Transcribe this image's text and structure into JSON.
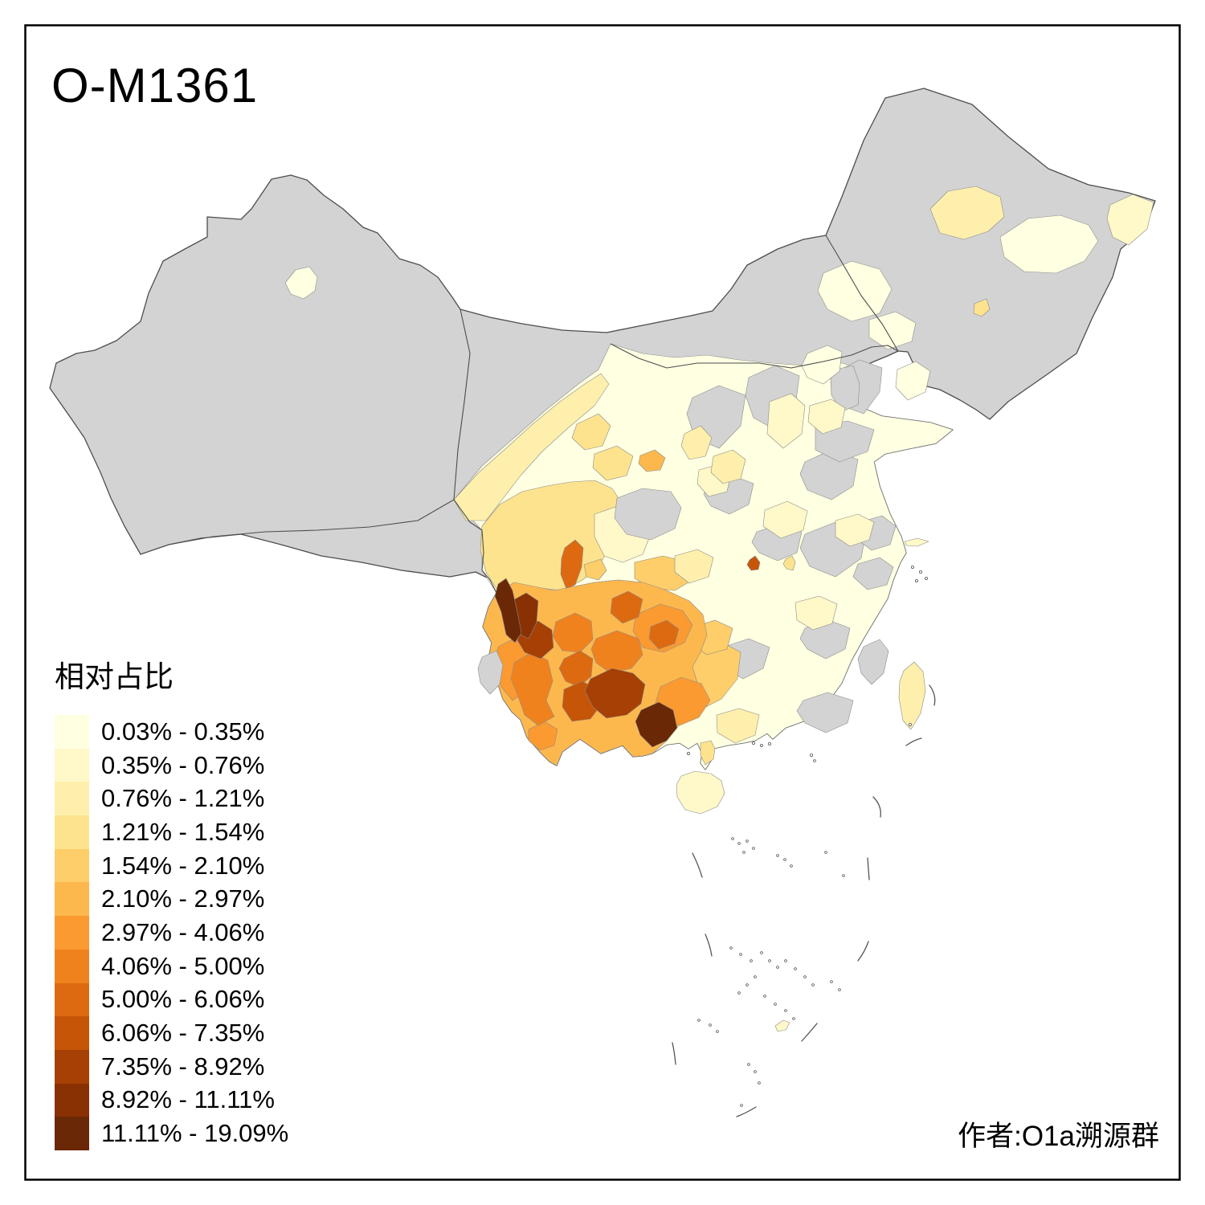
{
  "title": "O-M1361",
  "legend": {
    "title": "相对占比",
    "items": [
      {
        "label": "0.03% - 0.35%",
        "color": "#FFFFE2"
      },
      {
        "label": "0.35% - 0.76%",
        "color": "#FFF8C8"
      },
      {
        "label": "0.76% - 1.21%",
        "color": "#FEEFAC"
      },
      {
        "label": "1.21% - 1.54%",
        "color": "#FDE38E"
      },
      {
        "label": "1.54% - 2.10%",
        "color": "#FDCE69"
      },
      {
        "label": "2.10% - 2.97%",
        "color": "#FDB84D"
      },
      {
        "label": "2.97% - 4.06%",
        "color": "#FA9A31"
      },
      {
        "label": "4.06% - 5.00%",
        "color": "#F0821E"
      },
      {
        "label": "5.00% - 6.06%",
        "color": "#DD6A11"
      },
      {
        "label": "6.06% - 7.35%",
        "color": "#C65508"
      },
      {
        "label": "7.35% - 8.92%",
        "color": "#A74004"
      },
      {
        "label": "8.92% - 11.11%",
        "color": "#8A3103"
      },
      {
        "label": "11.11% - 19.09%",
        "color": "#6A2806"
      }
    ],
    "no_data_color": "#D3D3D3"
  },
  "attribution": "作者:O1a溯源群",
  "frame_color": "#000000",
  "boundary_line_color": "#4D4D4D"
}
